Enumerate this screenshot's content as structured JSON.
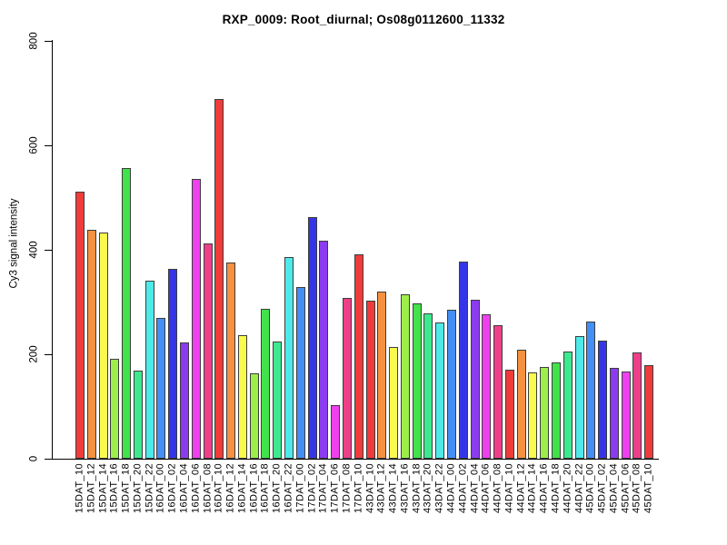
{
  "page": {
    "background": "#ffffff"
  },
  "chart_data": {
    "type": "bar",
    "title": "RXP_0009: Root_diurnal; Os08g0112600_11332",
    "ylabel": "Cy3 signal intensity",
    "xlabel": "",
    "ylim": [
      0,
      800
    ],
    "ytick_values": [
      0,
      200,
      400,
      600,
      800
    ],
    "ytick_labels": [
      "0",
      "200",
      "400",
      "600",
      "800"
    ],
    "grid": false,
    "legend": false,
    "axis_color": "#000000",
    "bar_border_color": "#3d3d3d",
    "palette": [
      "#F03B3B",
      "#F59140",
      "#FAFA4E",
      "#9DEE4B",
      "#41E24A",
      "#3DE98E",
      "#4EE9E9",
      "#438FF5",
      "#3535E8",
      "#8B3BF0",
      "#EF3FEF",
      "#EF3F88"
    ],
    "categories": [
      "15DAT_10",
      "15DAT_12",
      "15DAT_14",
      "15DAT_16",
      "15DAT_18",
      "15DAT_20",
      "15DAT_22",
      "16DAT_00",
      "16DAT_02",
      "16DAT_04",
      "16DAT_06",
      "16DAT_08",
      "16DAT_10",
      "16DAT_12",
      "16DAT_14",
      "16DAT_16",
      "16DAT_18",
      "16DAT_20",
      "16DAT_22",
      "17DAT_00",
      "17DAT_02",
      "17DAT_04",
      "17DAT_06",
      "17DAT_08",
      "17DAT_10",
      "43DAT_10",
      "43DAT_12",
      "43DAT_14",
      "43DAT_16",
      "43DAT_18",
      "43DAT_20",
      "43DAT_22",
      "44DAT_00",
      "44DAT_02",
      "44DAT_04",
      "44DAT_06",
      "44DAT_08",
      "44DAT_10",
      "44DAT_12",
      "44DAT_14",
      "44DAT_16",
      "44DAT_18",
      "44DAT_20",
      "44DAT_22",
      "45DAT_00",
      "45DAT_02",
      "45DAT_04",
      "45DAT_06",
      "45DAT_08",
      "45DAT_10"
    ],
    "values": [
      512,
      438,
      433,
      191,
      556,
      168,
      341,
      270,
      363,
      222,
      535,
      412,
      689,
      376,
      236,
      164,
      287,
      224,
      386,
      329,
      462,
      417,
      102,
      308,
      391,
      303,
      320,
      214,
      315,
      297,
      278,
      260,
      286,
      377,
      305,
      277,
      255,
      170,
      208,
      166,
      176,
      184,
      205,
      234,
      262,
      226,
      174,
      167,
      203,
      180
    ],
    "color_indices": [
      0,
      1,
      2,
      3,
      4,
      5,
      6,
      7,
      8,
      9,
      10,
      11,
      0,
      1,
      2,
      3,
      4,
      5,
      6,
      7,
      8,
      9,
      10,
      11,
      0,
      0,
      1,
      2,
      3,
      4,
      5,
      6,
      7,
      8,
      9,
      10,
      11,
      0,
      1,
      2,
      3,
      4,
      5,
      6,
      7,
      8,
      9,
      10,
      11,
      0
    ]
  }
}
